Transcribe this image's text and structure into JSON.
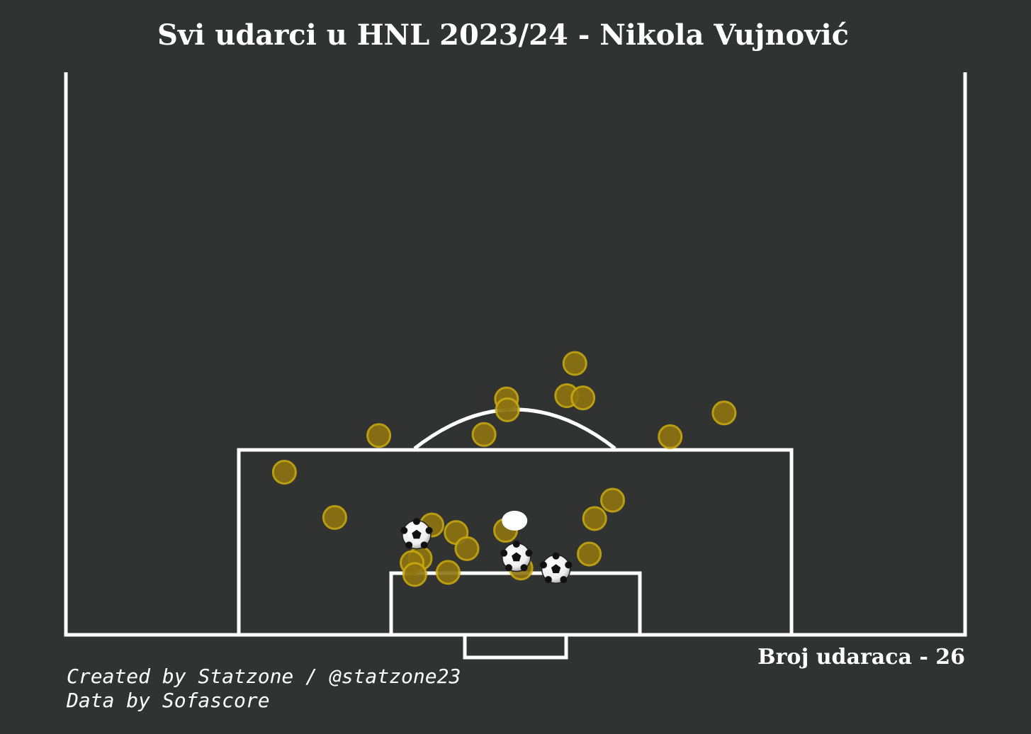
{
  "title": "Svi udarci u HNL 2023/24 - Nikola Vujnović",
  "shot_count_label": "Broj udaraca - 26",
  "credits": {
    "line1": "Created by Statzone / @statzone23",
    "line2": "Data by Sofascore"
  },
  "colors": {
    "background": "#313332",
    "lines": "#ffffff",
    "shot_fill": "#8d7410",
    "shot_stroke": "#c9a90e"
  },
  "chart_data": {
    "type": "scatter",
    "title": "Svi udarci u HNL 2023/24 - Nikola Vujnović",
    "xlabel": "",
    "ylabel": "",
    "pitch_view": "half-pitch, vertical, attacking goal at bottom",
    "coordinate_units": "pitch percent (x across width 0-100 left to right, y distance from goal line 0-50)",
    "xlim": [
      0,
      100
    ],
    "ylim": [
      0,
      60
    ],
    "grid": false,
    "series": [
      {
        "marker": "circle",
        "points": [
          {
            "x": 56.6,
            "y": 25.2
          },
          {
            "x": 49.0,
            "y": 21.9
          },
          {
            "x": 49.1,
            "y": 20.9
          },
          {
            "x": 55.7,
            "y": 22.2
          },
          {
            "x": 57.5,
            "y": 22.0
          },
          {
            "x": 34.8,
            "y": 18.5
          },
          {
            "x": 46.5,
            "y": 18.6
          },
          {
            "x": 67.2,
            "y": 18.4
          },
          {
            "x": 73.2,
            "y": 20.6
          },
          {
            "x": 24.3,
            "y": 15.1
          },
          {
            "x": 29.9,
            "y": 10.9
          },
          {
            "x": 40.7,
            "y": 10.2
          },
          {
            "x": 43.4,
            "y": 9.5
          },
          {
            "x": 44.6,
            "y": 8.0
          },
          {
            "x": 39.4,
            "y": 7.1
          },
          {
            "x": 38.5,
            "y": 6.7
          },
          {
            "x": 38.8,
            "y": 5.6
          },
          {
            "x": 42.5,
            "y": 5.8
          },
          {
            "x": 48.9,
            "y": 9.7
          },
          {
            "x": 58.8,
            "y": 10.8
          },
          {
            "x": 60.8,
            "y": 12.5
          },
          {
            "x": 58.2,
            "y": 7.5
          },
          {
            "x": 50.6,
            "y": 6.2
          }
        ]
      },
      {
        "marker": "goal-ball",
        "points": [
          {
            "x": 39.0,
            "y": 9.3
          },
          {
            "x": 50.1,
            "y": 7.2
          },
          {
            "x": 54.5,
            "y": 6.1
          }
        ]
      },
      {
        "marker": "highlight",
        "points": [
          {
            "x": 49.9,
            "y": 10.6
          }
        ]
      }
    ]
  }
}
